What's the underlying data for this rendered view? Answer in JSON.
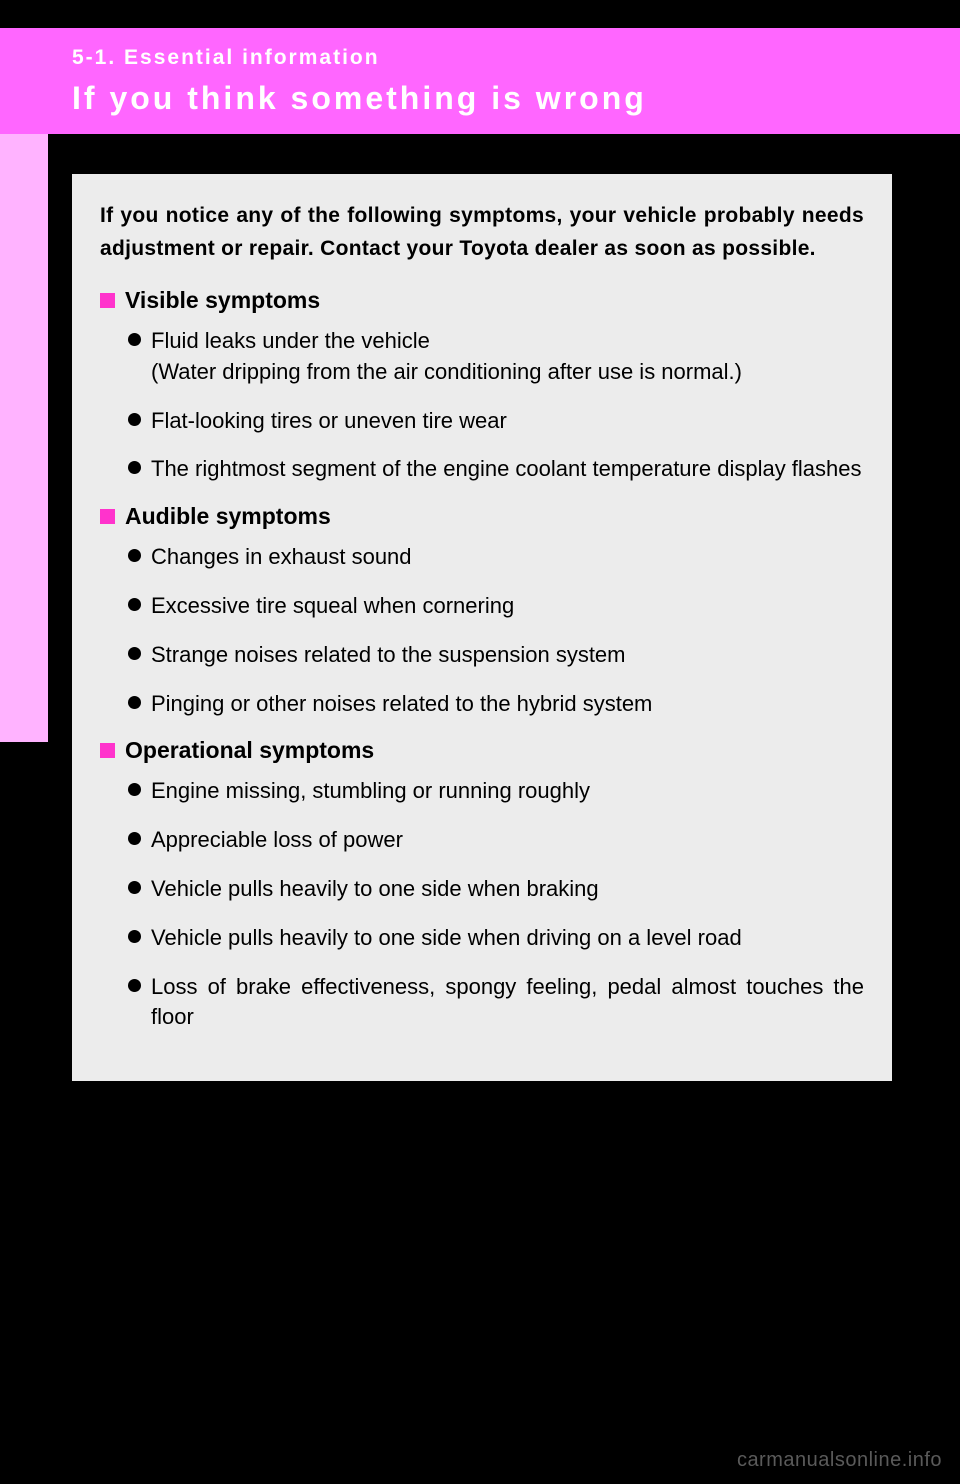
{
  "colors": {
    "header_bg": "#ff66ff",
    "side_tab_bg": "#ffb3ff",
    "panel_bg": "#ececec",
    "square_bullet": "#ff33cc",
    "circle_bullet": "#000000",
    "page_bg": "#000000",
    "header_text": "#ffffff",
    "body_text": "#000000",
    "watermark_text": "#5a5a5a"
  },
  "header": {
    "section_label": "5-1. Essential information",
    "title": "If you think something is wrong"
  },
  "intro_text": "If you notice any of the following symptoms, your vehicle probably needs adjustment or repair. Contact your Toyota dealer as soon as possible.",
  "categories": [
    {
      "title": "Visible symptoms",
      "items": [
        {
          "text": "Fluid leaks under the vehicle\n(Water dripping from the air conditioning after use is normal.)"
        },
        {
          "text": "Flat-looking tires or uneven tire wear"
        },
        {
          "text": "The rightmost segment of the engine coolant temperature display flashes"
        }
      ]
    },
    {
      "title": "Audible symptoms",
      "items": [
        {
          "text": "Changes in exhaust sound"
        },
        {
          "text": "Excessive tire squeal when cornering"
        },
        {
          "text": "Strange noises related to the suspension system"
        },
        {
          "text": "Pinging or other noises related to the hybrid system"
        }
      ]
    },
    {
      "title": "Operational symptoms",
      "items": [
        {
          "text": "Engine missing, stumbling or running roughly"
        },
        {
          "text": "Appreciable loss of power"
        },
        {
          "text": "Vehicle pulls heavily to one side when braking"
        },
        {
          "text": "Vehicle pulls heavily to one side when driving on a level road"
        },
        {
          "text": "Loss of brake effectiveness, spongy feeling, pedal almost touches the floor",
          "justify": true
        }
      ]
    }
  ],
  "watermark": "carmanualsonline.info"
}
